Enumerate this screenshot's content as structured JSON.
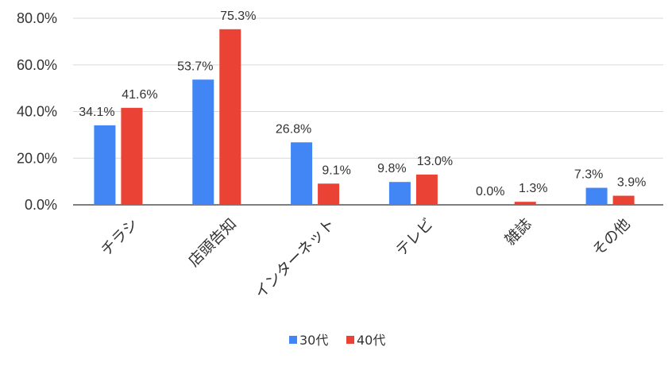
{
  "chart_data": {
    "type": "bar",
    "categories": [
      "チラシ",
      "店頭告知",
      "インターネット",
      "テレビ",
      "雑誌",
      "その他"
    ],
    "series": [
      {
        "name": "30代",
        "color": "#4285f4",
        "values": [
          34.1,
          53.7,
          26.8,
          9.8,
          0.0,
          7.3
        ]
      },
      {
        "name": "40代",
        "color": "#ea4335",
        "values": [
          41.6,
          75.3,
          9.1,
          13.0,
          1.3,
          3.9
        ]
      }
    ],
    "y_ticks": [
      "0.0%",
      "20.0%",
      "40.0%",
      "60.0%",
      "80.0%"
    ],
    "ylim": [
      0,
      80
    ],
    "value_format": "percent_1dp",
    "grid": true,
    "legend_position": "bottom-center",
    "title": "",
    "xlabel": "",
    "ylabel": ""
  }
}
